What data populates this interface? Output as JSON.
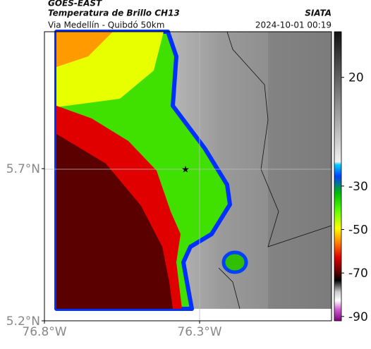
{
  "header": {
    "title": "GOES-EAST",
    "subtitle": "Temperatura de Brillo CH13",
    "region": "Via Medellín - Quibdó 50km",
    "source": "SIATA",
    "timestamp": "2024-10-01 00:19"
  },
  "map": {
    "xlim": [
      -76.8,
      -75.875
    ],
    "ylim": [
      5.2,
      6.15
    ],
    "xticks": [
      {
        "value": -76.8,
        "label": "76.8°W"
      },
      {
        "value": -76.3,
        "label": "76.3°W"
      }
    ],
    "yticks": [
      {
        "value": 5.7,
        "label": "5.7°N"
      },
      {
        "value": 5.2,
        "label": "5.2°N"
      }
    ]
  },
  "colorbar": {
    "lim": [
      -92,
      41
    ],
    "ticks": [
      20,
      -30,
      -50,
      -70,
      -90
    ]
  }
}
